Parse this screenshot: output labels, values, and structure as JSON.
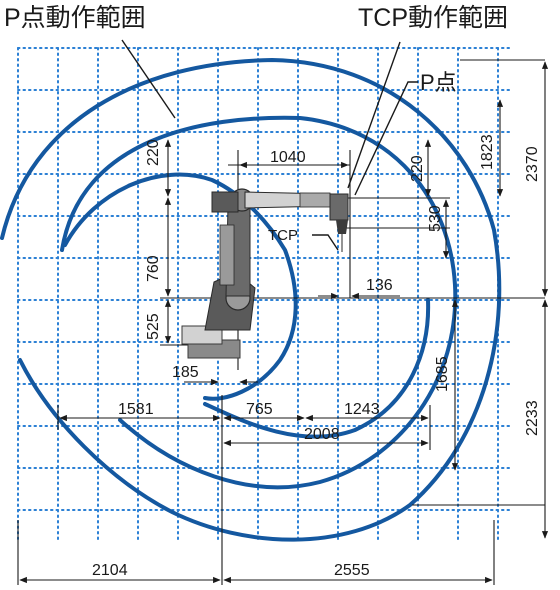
{
  "labels": {
    "p_point_range": "P点動作範囲",
    "tcp_range": "TCP動作範囲",
    "p_point": "P点",
    "tcp": "TCP"
  },
  "dimensions": {
    "d220_left": "220",
    "d1040": "1040",
    "d220_right": "220",
    "d1823": "1823",
    "d2370": "2370",
    "d530": "530",
    "d760": "760",
    "d136": "136",
    "d525": "525",
    "d1685": "1685",
    "d185": "185",
    "d1581": "1581",
    "d765": "765",
    "d1243": "1243",
    "d2008": "2008",
    "d2233": "2233",
    "d2104": "2104",
    "d2555": "2555"
  },
  "colors": {
    "arc": "#1458a0",
    "grid": "#2a7fd4",
    "line": "#1a1a1a",
    "robot_dark": "#3a3a3a",
    "robot_mid": "#8a8a8a",
    "robot_light": "#d2d2d2"
  }
}
